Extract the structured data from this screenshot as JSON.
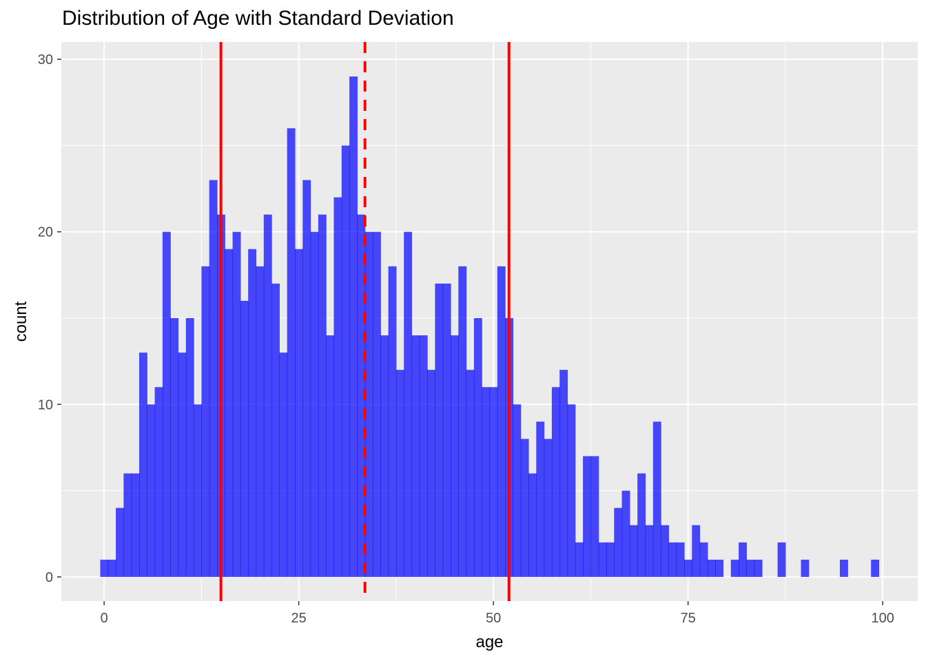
{
  "chart_data": {
    "type": "bar",
    "title": "Distribution of Age with Standard Deviation",
    "xlabel": "age",
    "ylabel": "count",
    "xlim": [
      -5.5,
      104.5
    ],
    "ylim": [
      -1.4,
      31
    ],
    "x_ticks": [
      0,
      25,
      50,
      75,
      100
    ],
    "y_ticks": [
      0,
      10,
      20,
      30
    ],
    "bin_width": 1,
    "bins_start": 0,
    "values": [
      1,
      1,
      4,
      6,
      6,
      13,
      10,
      11,
      20,
      15,
      13,
      15,
      10,
      18,
      23,
      21,
      19,
      20,
      16,
      19,
      18,
      21,
      17,
      13,
      26,
      19,
      23,
      20,
      21,
      14,
      22,
      25,
      29,
      21,
      20,
      20,
      14,
      18,
      12,
      20,
      14,
      14,
      12,
      17,
      17,
      14,
      18,
      12,
      15,
      11,
      11,
      18,
      15,
      10,
      8,
      6,
      9,
      8,
      11,
      12,
      10,
      2,
      7,
      7,
      2,
      2,
      4,
      5,
      3,
      6,
      3,
      9,
      3,
      2,
      2,
      1,
      3,
      2,
      1,
      1,
      0,
      1,
      2,
      1,
      1,
      0,
      0,
      2,
      0,
      0,
      1,
      0,
      0,
      0,
      0,
      1,
      0,
      0,
      0,
      1
    ],
    "reference_lines": [
      {
        "name": "mean",
        "x": 33.5,
        "style": "dashed"
      },
      {
        "name": "mean - sd",
        "x": 15.0,
        "style": "solid"
      },
      {
        "name": "mean + sd",
        "x": 52.0,
        "style": "solid"
      }
    ],
    "grid": true,
    "colors": {
      "bar": "#0000ff",
      "bar_opacity": 0.7,
      "reference_line": "#ff0000",
      "panel_background": "#ebebeb",
      "gridline": "#ffffff"
    }
  }
}
